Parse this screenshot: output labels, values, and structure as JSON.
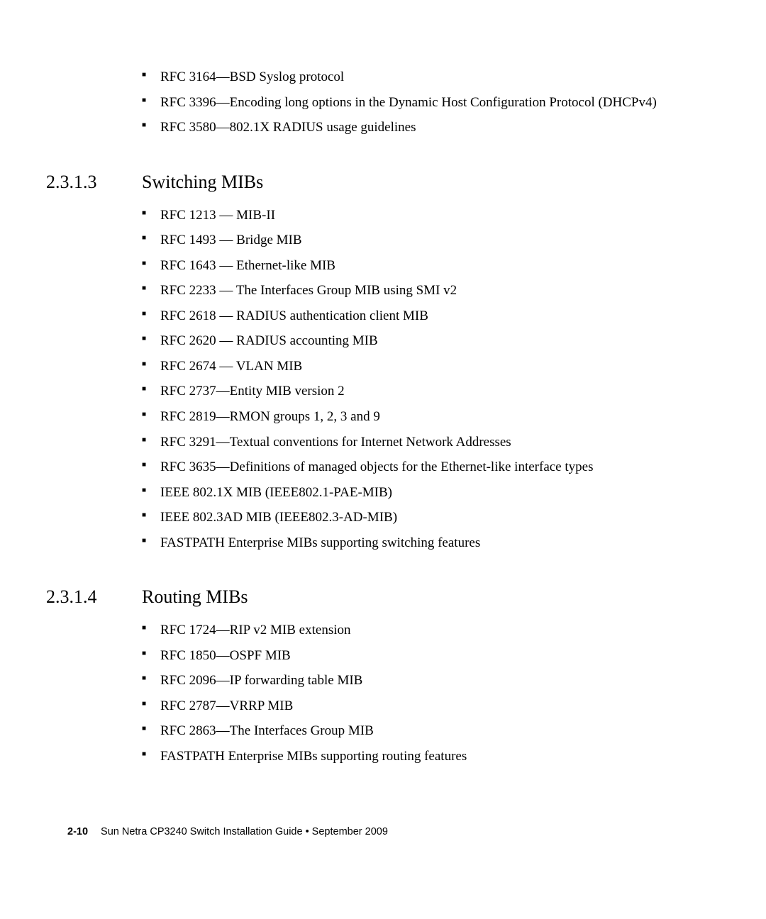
{
  "top_list": {
    "items": [
      "RFC 3164—BSD Syslog protocol",
      "RFC 3396—Encoding long options in the Dynamic Host Configuration Protocol (DHCPv4)",
      "RFC 3580—802.1X RADIUS usage guidelines"
    ]
  },
  "section1": {
    "number": "2.3.1.3",
    "title": "Switching MIBs",
    "items": [
      "RFC 1213 — MIB-II",
      "RFC 1493 — Bridge MIB",
      "RFC 1643 — Ethernet-like MIB",
      "RFC 2233 — The Interfaces Group MIB using SMI v2",
      "RFC 2618 — RADIUS authentication client MIB",
      "RFC 2620 — RADIUS accounting MIB",
      "RFC 2674 — VLAN MIB",
      "RFC 2737—Entity MIB version 2",
      "RFC 2819—RMON groups 1, 2, 3 and 9",
      "RFC 3291—Textual conventions for Internet Network Addresses",
      "RFC 3635—Definitions of managed objects for the Ethernet-like interface types",
      "IEEE 802.1X MIB (IEEE802.1-PAE-MIB)",
      "IEEE 802.3AD MIB (IEEE802.3-AD-MIB)",
      "FASTPATH Enterprise MIBs supporting switching features"
    ]
  },
  "section2": {
    "number": "2.3.1.4",
    "title": "Routing MIBs",
    "items": [
      "RFC 1724—RIP v2 MIB extension",
      "RFC 1850—OSPF MIB",
      "RFC 2096—IP forwarding table MIB",
      "RFC 2787—VRRP MIB",
      "RFC 2863—The Interfaces Group MIB",
      "FASTPATH Enterprise MIBs supporting routing features"
    ]
  },
  "footer": {
    "page": "2-10",
    "doc_title": "Sun Netra CP3240 Switch Installation Guide  •  September 2009"
  }
}
